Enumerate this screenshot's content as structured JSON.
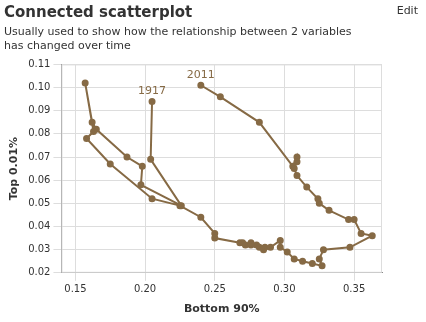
{
  "chart_data": {
    "type": "scatter",
    "title": "Connected scatterplot",
    "subtitle": [
      "Usually used to show how the relationship between 2 variables",
      "has changed over time"
    ],
    "corner_text": "Edit",
    "x_label": "Bottom 90%",
    "y_label": "Top 0.01%",
    "color": "#866a45",
    "marker": "circle",
    "line_style": "solid",
    "grid": true,
    "x": [
      0.205,
      0.204,
      0.226,
      0.197,
      0.198,
      0.187,
      0.165,
      0.162,
      0.157,
      0.163,
      0.158,
      0.175,
      0.205,
      0.225,
      0.24,
      0.25,
      0.25,
      0.268,
      0.272,
      0.276,
      0.282,
      0.286,
      0.28,
      0.27,
      0.276,
      0.285,
      0.29,
      0.297,
      0.297,
      0.302,
      0.307,
      0.313,
      0.32,
      0.327,
      0.325,
      0.328,
      0.347,
      0.363,
      0.355,
      0.35,
      0.346,
      0.332,
      0.325,
      0.324,
      0.316,
      0.309,
      0.307,
      0.309,
      0.309,
      0.306,
      0.282,
      0.254,
      0.24
    ],
    "values": [
      0.094,
      0.069,
      0.049,
      0.058,
      0.066,
      0.07,
      0.082,
      0.085,
      0.102,
      0.081,
      0.078,
      0.067,
      0.052,
      0.049,
      0.044,
      0.037,
      0.035,
      0.033,
      0.032,
      0.033,
      0.031,
      0.031,
      0.032,
      0.033,
      0.032,
      0.03,
      0.031,
      0.034,
      0.031,
      0.029,
      0.026,
      0.025,
      0.024,
      0.023,
      0.026,
      0.03,
      0.031,
      0.036,
      0.037,
      0.043,
      0.043,
      0.047,
      0.05,
      0.052,
      0.057,
      0.062,
      0.065,
      0.068,
      0.07,
      0.066,
      0.085,
      0.096,
      0.101
    ],
    "annotations": [
      {
        "x": 0.205,
        "y": 0.094,
        "text": "1917"
      },
      {
        "x": 0.24,
        "y": 0.101,
        "text": "2011"
      }
    ],
    "xlim": [
      0.14,
      0.37
    ],
    "xticks": [
      0.15,
      {
        "value": 0.2,
        "label": "0.20"
      },
      0.25,
      {
        "value": 0.3,
        "label": "0.30"
      },
      0.35
    ],
    "ylim": [
      0.02,
      0.11
    ],
    "yticks": [
      0.02,
      0.03,
      0.04,
      0.05,
      0.06,
      0.07,
      0.08,
      0.09,
      {
        "value": 0.1,
        "label": "0.10"
      },
      0.11
    ]
  }
}
